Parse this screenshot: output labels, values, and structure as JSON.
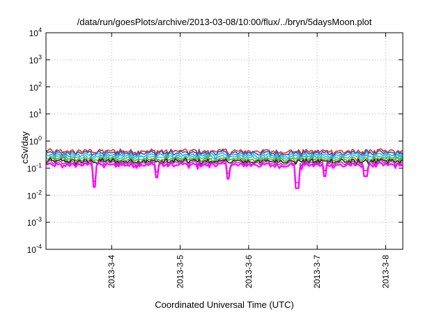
{
  "chart_data": {
    "type": "line",
    "title": "/data/run/goesPlots/archive/2013-03-08/10:00/flux/../bryn/5daysMoon.plot",
    "xlabel": "Coordinated Universal Time (UTC)",
    "ylabel": "cSv/day",
    "y_scale": "log",
    "ylim": [
      0.0001,
      10000
    ],
    "xlim": [
      "2013-03-03 01:00",
      "2013-03-08 06:00"
    ],
    "grid": true,
    "legend": "none",
    "y_ticks": [
      {
        "base": "10",
        "exp": "-4"
      },
      {
        "base": "10",
        "exp": "-3"
      },
      {
        "base": "10",
        "exp": "-2"
      },
      {
        "base": "10",
        "exp": "-1"
      },
      {
        "base": "10",
        "exp": "0"
      },
      {
        "base": "10",
        "exp": "1"
      },
      {
        "base": "10",
        "exp": "2"
      },
      {
        "base": "10",
        "exp": "3"
      },
      {
        "base": "10",
        "exp": "4"
      }
    ],
    "x_ticks": [
      "2013-3-4",
      "2013-3-5",
      "2013-3-6",
      "2013-3-7",
      "2013-3-8"
    ],
    "series": [
      {
        "color": "#e8281f",
        "level": 0.42
      },
      {
        "color": "#1f54e8",
        "level": 0.36
      },
      {
        "color": "#19b9d6",
        "level": 0.3
      },
      {
        "color": "#2ad18f",
        "level": 0.25
      },
      {
        "color": "#8a8a2a",
        "level": 0.21
      },
      {
        "color": "#222222",
        "level": 0.18
      },
      {
        "color": "#c22fd0",
        "level": 0.155
      },
      {
        "color": "#ff00ff",
        "level": 0.13
      }
    ],
    "dips": [
      {
        "x": "2013-03-03 18:00",
        "y": 0.02
      },
      {
        "x": "2013-03-04 16:00",
        "y": 0.045
      },
      {
        "x": "2013-03-05 17:00",
        "y": 0.04
      },
      {
        "x": "2013-03-06 17:00",
        "y": 0.018
      },
      {
        "x": "2013-03-07 02:30",
        "y": 0.05
      },
      {
        "x": "2013-03-07 17:00",
        "y": 0.05
      }
    ]
  }
}
